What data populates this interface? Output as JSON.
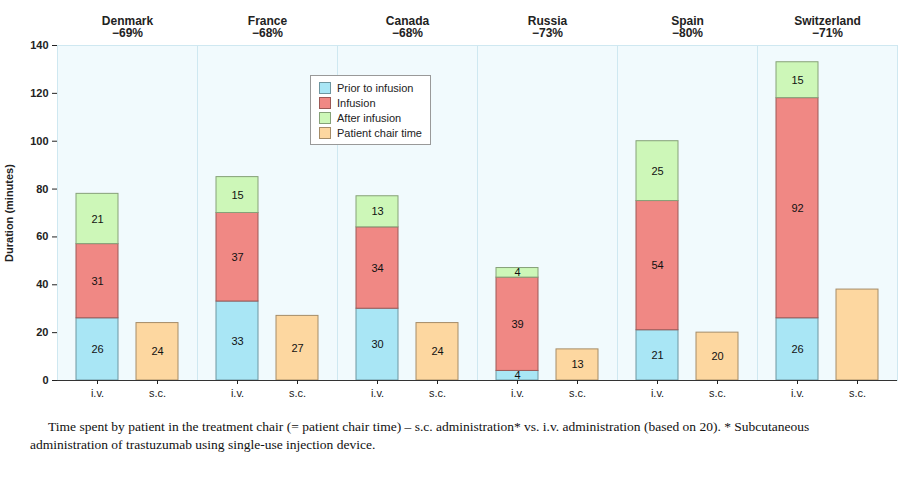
{
  "chart_data": {
    "type": "bar",
    "stacked": true,
    "data_labels": true,
    "legend": "top",
    "ylabel": "Duration (minutes)",
    "caption": "Time spent by patient in the treatment chair (= patient chair time) – s.c. administration* vs. i.v. administration (based on 20). * Subcutaneous administration of trastuzumab using single-use injection device.",
    "groups": [
      "Denmark",
      "France",
      "Canada",
      "Russia",
      "Spain",
      "Switzerland"
    ],
    "group_labels": [
      "−69%",
      "−68%",
      "−68%",
      "−73%",
      "−80%",
      "−71%"
    ],
    "categories": [
      "i.v.",
      "s.c."
    ],
    "ylim": [
      0,
      140
    ],
    "yticks": [
      0,
      20,
      40,
      60,
      80,
      100,
      120,
      140
    ],
    "series": [
      {
        "name": "Prior to infusion",
        "color": "#a9e6f5",
        "values": [
          [
            26,
            null
          ],
          [
            33,
            null
          ],
          [
            30,
            null
          ],
          [
            4,
            null
          ],
          [
            21,
            null
          ],
          [
            26,
            null
          ]
        ]
      },
      {
        "name": "Infusion",
        "color": "#f08884",
        "values": [
          [
            31,
            null
          ],
          [
            37,
            null
          ],
          [
            34,
            null
          ],
          [
            39,
            null
          ],
          [
            54,
            null
          ],
          [
            92,
            null
          ]
        ]
      },
      {
        "name": "After infusion",
        "color": "#cdf7b8",
        "values": [
          [
            21,
            null
          ],
          [
            15,
            null
          ],
          [
            13,
            null
          ],
          [
            4,
            null
          ],
          [
            25,
            null
          ],
          [
            15,
            null
          ]
        ]
      },
      {
        "name": "Patient chair time",
        "color": "#fdd7a0",
        "values": [
          [
            null,
            24
          ],
          [
            null,
            27
          ],
          [
            null,
            24
          ],
          [
            null,
            13
          ],
          [
            null,
            20
          ],
          [
            null,
            38
          ]
        ],
        "value_labels": [
          [
            null,
            "24"
          ],
          [
            null,
            "27"
          ],
          [
            null,
            "24"
          ],
          [
            null,
            "13"
          ],
          [
            null,
            "20"
          ],
          [
            null,
            null
          ]
        ]
      }
    ]
  }
}
